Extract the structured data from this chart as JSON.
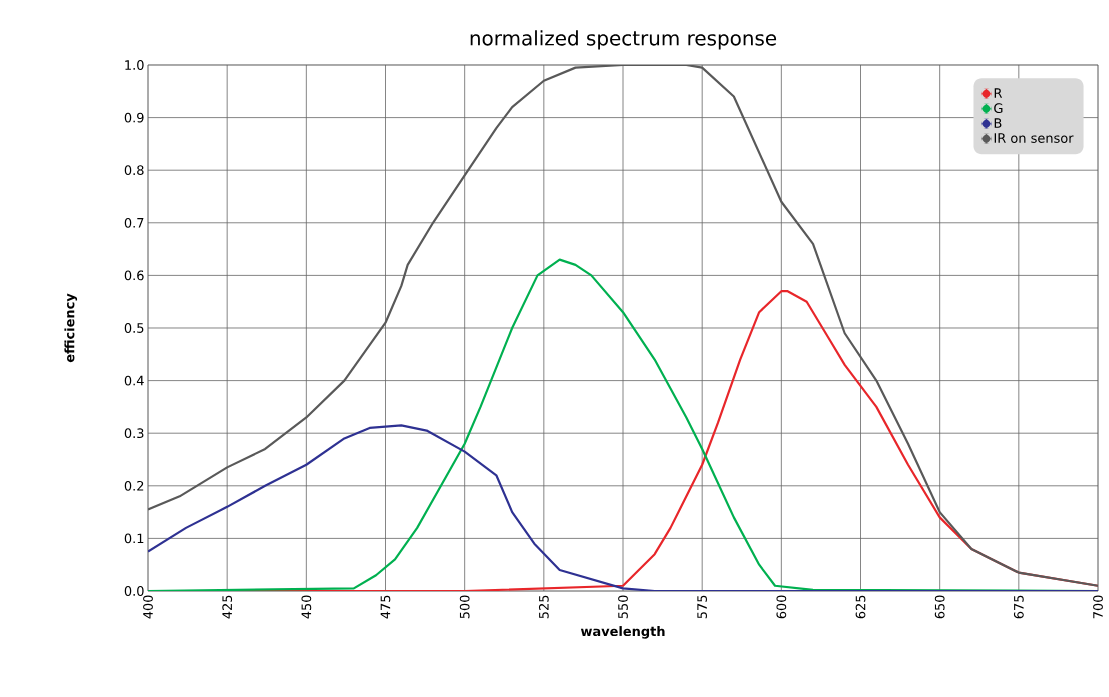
{
  "chart_data": {
    "type": "line",
    "title": "normalized spectrum response",
    "xlabel": "wavelength",
    "ylabel": "efficiency",
    "xlim": [
      400,
      700
    ],
    "ylim": [
      0,
      1
    ],
    "xticks": [
      400,
      425,
      450,
      475,
      500,
      525,
      550,
      575,
      600,
      625,
      650,
      675,
      700
    ],
    "yticks": [
      {
        "value": 0,
        "label": "0.0"
      },
      {
        "value": 0.1,
        "label": "0.1"
      },
      {
        "value": 0.2,
        "label": "0.2"
      },
      {
        "value": 0.3,
        "label": "0.3"
      },
      {
        "value": 0.4,
        "label": "0.4"
      },
      {
        "value": 0.5,
        "label": "0.5"
      },
      {
        "value": 0.6,
        "label": "0.6"
      },
      {
        "value": 0.7,
        "label": "0.7"
      },
      {
        "value": 0.8,
        "label": "0.8"
      },
      {
        "value": 0.9,
        "label": "0.9"
      },
      {
        "value": 1,
        "label": "1.0"
      }
    ],
    "grid": true,
    "legend": "top right",
    "marker": "none",
    "line_style": "solid",
    "series": [
      {
        "name": "R",
        "color": "#e8262a",
        "x": [
          400,
          450,
          500,
          550,
          560,
          565,
          575,
          580,
          587,
          593,
          600,
          602,
          608,
          615,
          620,
          630,
          640,
          650,
          660,
          675,
          700
        ],
        "values": [
          0,
          0,
          0,
          0.01,
          0.07,
          0.12,
          0.24,
          0.32,
          0.44,
          0.53,
          0.57,
          0.57,
          0.55,
          0.48,
          0.43,
          0.35,
          0.24,
          0.14,
          0.08,
          0.035,
          0.01
        ]
      },
      {
        "name": "G",
        "color": "#00b050",
        "x": [
          400,
          465,
          472,
          478,
          485,
          500,
          505,
          515,
          523,
          530,
          535,
          540,
          550,
          560,
          570,
          575,
          585,
          593,
          598,
          610,
          700
        ],
        "values": [
          0,
          0.005,
          0.03,
          0.06,
          0.12,
          0.28,
          0.35,
          0.5,
          0.6,
          0.63,
          0.62,
          0.6,
          0.53,
          0.44,
          0.33,
          0.27,
          0.14,
          0.05,
          0.01,
          0.002,
          0
        ]
      },
      {
        "name": "B",
        "color": "#2e3192",
        "x": [
          400,
          412,
          425,
          437,
          450,
          462,
          470,
          480,
          488,
          500,
          510,
          515,
          522,
          530,
          550,
          560,
          700
        ],
        "values": [
          0.075,
          0.12,
          0.16,
          0.2,
          0.24,
          0.29,
          0.31,
          0.315,
          0.305,
          0.265,
          0.22,
          0.15,
          0.09,
          0.04,
          0.005,
          0,
          0
        ]
      },
      {
        "name": "IR on sensor",
        "color": "#595959",
        "x": [
          400,
          410,
          425,
          437,
          450,
          462,
          475,
          480,
          482,
          490,
          500,
          510,
          515,
          525,
          535,
          550,
          570,
          575,
          585,
          600,
          610,
          620,
          630,
          640,
          650,
          660,
          675,
          690,
          700
        ],
        "values": [
          0.155,
          0.18,
          0.235,
          0.27,
          0.33,
          0.4,
          0.51,
          0.58,
          0.62,
          0.7,
          0.79,
          0.88,
          0.92,
          0.97,
          0.995,
          1,
          1,
          0.995,
          0.94,
          0.74,
          0.66,
          0.49,
          0.4,
          0.28,
          0.15,
          0.08,
          0.035,
          0.02,
          0.01
        ]
      }
    ]
  }
}
